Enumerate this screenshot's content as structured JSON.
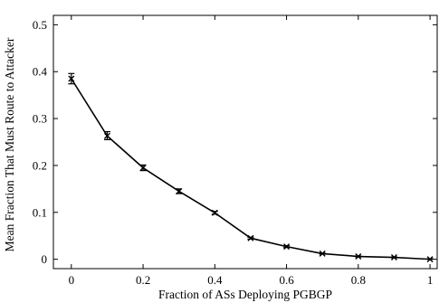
{
  "chart_data": {
    "type": "line",
    "title": "",
    "xlabel": "Fraction of ASs Deploying PGBGP",
    "ylabel": "Mean Fraction That Must Route to Attacker",
    "xlim": [
      -0.05,
      1.02
    ],
    "ylim": [
      -0.02,
      0.52
    ],
    "grid": false,
    "legend": "none",
    "x_ticks": [
      "0",
      "0.2",
      "0.4",
      "0.6",
      "0.8",
      "1"
    ],
    "x_tick_values": [
      0,
      0.2,
      0.4,
      0.6,
      0.8,
      1
    ],
    "y_ticks": [
      "0",
      "0.1",
      "0.2",
      "0.3",
      "0.4",
      "0.5"
    ],
    "y_tick_values": [
      0,
      0.1,
      0.2,
      0.3,
      0.4,
      0.5
    ],
    "series": [
      {
        "color": "#000000",
        "marker": "x",
        "x": [
          0,
          0.1,
          0.2,
          0.3,
          0.4,
          0.5,
          0.6,
          0.7,
          0.8,
          0.9,
          1.0
        ],
        "values": [
          0.385,
          0.263,
          0.195,
          0.145,
          0.099,
          0.045,
          0.027,
          0.012,
          0.006,
          0.004,
          0.0
        ],
        "error_low": [
          0.374,
          0.255,
          0.189,
          0.14,
          0.096,
          0.043,
          0.025,
          0.011,
          0.005,
          0.003,
          0.0
        ],
        "error_high": [
          0.396,
          0.272,
          0.201,
          0.15,
          0.102,
          0.047,
          0.029,
          0.013,
          0.007,
          0.005,
          0.001
        ]
      }
    ]
  }
}
